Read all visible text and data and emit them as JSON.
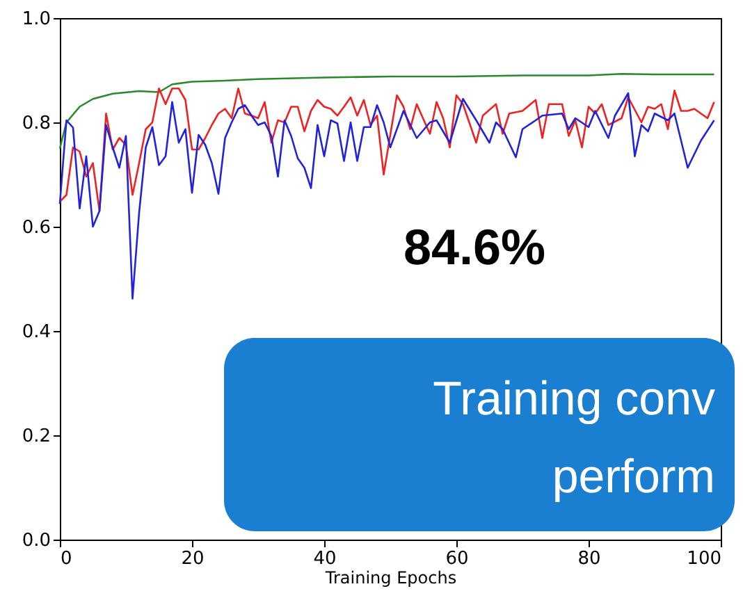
{
  "chart_data": {
    "type": "line",
    "xlabel": "Training Epochs",
    "xlim": [
      0,
      100
    ],
    "xticks": [
      0,
      20,
      40,
      60,
      80,
      100
    ],
    "ylim": [
      0,
      1
    ],
    "yticks": [
      {
        "value": 0,
        "label": "0.0"
      },
      {
        "value": 0.2,
        "label": "0.2"
      },
      {
        "value": 0.4,
        "label": "0.4"
      },
      {
        "value": 0.6,
        "label": "0.6"
      },
      {
        "value": 0.8,
        "label": "0.8"
      },
      {
        "value": 1,
        "label": "1.0"
      }
    ],
    "grid": false,
    "marker": "none",
    "line_style": "solid",
    "annotations": [
      "84.6%",
      "Training conv",
      "perform"
    ],
    "series": [
      {
        "color": "#2a8a2a",
        "x": [
          0,
          1,
          3,
          5,
          8,
          12,
          15,
          17,
          20,
          25,
          30,
          40,
          50,
          60,
          70,
          80,
          85,
          90,
          99
        ],
        "values": [
          0.75,
          0.8,
          0.83,
          0.845,
          0.855,
          0.86,
          0.858,
          0.873,
          0.878,
          0.88,
          0.883,
          0.886,
          0.888,
          0.888,
          0.89,
          0.89,
          0.893,
          0.892,
          0.892
        ]
      },
      {
        "color": "#ee2222",
        "x": [
          0,
          1,
          2,
          3,
          4,
          5,
          6,
          7,
          8,
          9,
          10,
          11,
          12,
          13,
          14,
          15,
          16,
          17,
          18,
          19,
          20,
          21,
          22,
          23,
          24,
          25,
          26,
          27,
          28,
          29,
          30,
          31,
          32,
          33,
          34,
          35,
          36,
          37,
          38,
          39,
          40,
          41,
          42,
          43,
          44,
          45,
          46,
          47,
          48,
          49,
          51,
          52,
          53,
          54,
          56,
          57,
          58,
          59,
          60,
          61,
          63,
          64,
          66,
          67,
          68,
          70,
          72,
          73,
          74,
          76,
          77,
          78,
          79,
          80,
          81,
          82,
          83,
          85,
          86,
          88,
          89,
          90,
          91,
          92,
          93,
          94,
          95,
          96,
          98,
          99
        ],
        "values": [
          0.648,
          0.661,
          0.752,
          0.744,
          0.696,
          0.722,
          0.63,
          0.817,
          0.748,
          0.77,
          0.757,
          0.661,
          0.722,
          0.787,
          0.8,
          0.865,
          0.835,
          0.865,
          0.865,
          0.843,
          0.748,
          0.748,
          0.77,
          0.795,
          0.817,
          0.826,
          0.808,
          0.865,
          0.817,
          0.813,
          0.808,
          0.839,
          0.761,
          0.804,
          0.8,
          0.83,
          0.83,
          0.783,
          0.822,
          0.843,
          0.83,
          0.826,
          0.813,
          0.83,
          0.848,
          0.813,
          0.843,
          0.795,
          0.813,
          0.7,
          0.852,
          0.83,
          0.787,
          0.835,
          0.778,
          0.839,
          0.808,
          0.752,
          0.852,
          0.835,
          0.761,
          0.813,
          0.835,
          0.778,
          0.817,
          0.822,
          0.843,
          0.77,
          0.835,
          0.835,
          0.774,
          0.804,
          0.752,
          0.83,
          0.817,
          0.835,
          0.795,
          0.808,
          0.848,
          0.8,
          0.83,
          0.826,
          0.835,
          0.787,
          0.861,
          0.822,
          0.822,
          0.826,
          0.808,
          0.839
        ]
      },
      {
        "color": "#2222dd",
        "x": [
          0,
          1,
          2,
          3,
          4,
          5,
          6,
          7,
          8,
          9,
          10,
          11,
          12,
          13,
          14,
          15,
          16,
          17,
          18,
          19,
          20,
          21,
          22,
          23,
          24,
          25,
          26,
          27,
          28,
          29,
          30,
          31,
          32,
          33,
          34,
          35,
          36,
          37,
          38,
          39,
          40,
          41,
          42,
          43,
          44,
          45,
          46,
          47,
          48,
          49,
          50,
          52,
          54,
          56,
          57,
          59,
          61,
          63,
          65,
          66,
          67,
          69,
          70,
          72,
          73,
          76,
          77,
          78,
          80,
          81,
          83,
          84,
          86,
          87,
          88,
          89,
          90,
          92,
          93,
          95,
          97,
          99
        ],
        "values": [
          0.644,
          0.804,
          0.79,
          0.635,
          0.735,
          0.6,
          0.63,
          0.795,
          0.752,
          0.713,
          0.774,
          0.462,
          0.627,
          0.752,
          0.791,
          0.718,
          0.735,
          0.839,
          0.761,
          0.787,
          0.665,
          0.776,
          0.757,
          0.722,
          0.663,
          0.77,
          0.8,
          0.826,
          0.833,
          0.813,
          0.795,
          0.8,
          0.774,
          0.696,
          0.804,
          0.774,
          0.731,
          0.713,
          0.674,
          0.795,
          0.735,
          0.804,
          0.798,
          0.726,
          0.8,
          0.726,
          0.791,
          0.791,
          0.833,
          0.8,
          0.752,
          0.822,
          0.77,
          0.8,
          0.804,
          0.761,
          0.845,
          0.804,
          0.761,
          0.8,
          0.787,
          0.733,
          0.787,
          0.804,
          0.813,
          0.817,
          0.787,
          0.808,
          0.791,
          0.822,
          0.77,
          0.813,
          0.856,
          0.735,
          0.795,
          0.783,
          0.817,
          0.804,
          0.817,
          0.713,
          0.765,
          0.804
        ]
      }
    ]
  }
}
